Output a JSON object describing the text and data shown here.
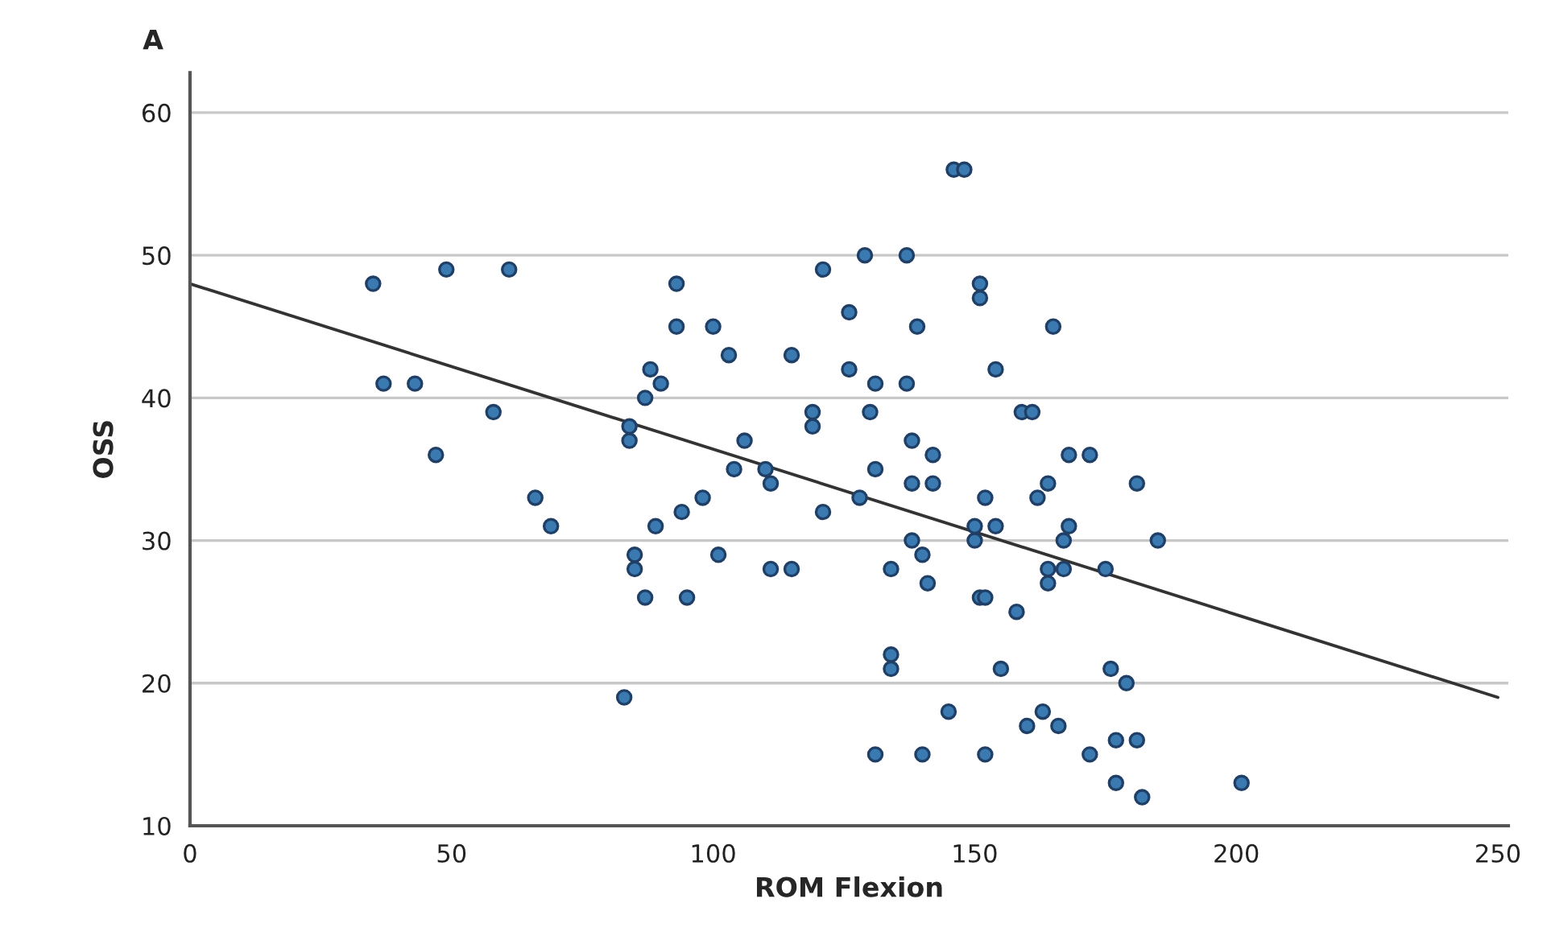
{
  "chart_data": {
    "type": "scatter",
    "title": "A",
    "xlabel": "ROM Flexion",
    "ylabel": "OSS",
    "xlim": [
      0,
      252
    ],
    "ylim": [
      10,
      62.8
    ],
    "xticks": [
      0,
      50,
      100,
      150,
      200,
      250
    ],
    "yticks": [
      10,
      20,
      30,
      40,
      50,
      60
    ],
    "grid": "y",
    "marker": "circle",
    "series": [
      {
        "color": "#3a7ab0",
        "x": [
          35,
          37,
          43,
          47,
          49,
          58,
          61,
          66,
          69,
          83,
          84,
          84,
          85,
          85,
          87,
          88,
          87,
          89,
          90,
          93,
          93,
          94,
          95,
          98,
          100,
          101,
          103,
          104,
          106,
          110,
          111,
          111,
          115,
          115,
          119,
          119,
          121,
          121,
          126,
          126,
          128,
          129,
          131,
          130,
          131,
          131,
          134,
          134,
          134,
          137,
          137,
          138,
          138,
          138,
          139,
          140,
          140,
          141,
          142,
          142,
          145,
          146,
          148,
          150,
          150,
          151,
          151,
          151,
          152,
          152,
          152,
          154,
          154,
          155,
          158,
          159,
          161,
          160,
          162,
          163,
          164,
          164,
          164,
          165,
          166,
          167,
          167,
          168,
          168,
          172,
          172,
          175,
          176,
          177,
          177,
          179,
          181,
          181,
          182,
          185,
          201
        ],
        "values": [
          48,
          41,
          41,
          36,
          49,
          39,
          49,
          33,
          31,
          19,
          38,
          37,
          29,
          28,
          26,
          42,
          40,
          31,
          41,
          48,
          45,
          32,
          26,
          33,
          45,
          29,
          43,
          35,
          37,
          35,
          34,
          28,
          28,
          43,
          39,
          38,
          32,
          49,
          46,
          42,
          33,
          50,
          41,
          39,
          35,
          15,
          28,
          22,
          21,
          50,
          41,
          37,
          34,
          30,
          45,
          29,
          15,
          27,
          36,
          34,
          18,
          56,
          56,
          30,
          31,
          48,
          47,
          26,
          26,
          33,
          15,
          42,
          31,
          21,
          25,
          39,
          39,
          17,
          33,
          18,
          34,
          28,
          27,
          45,
          17,
          28,
          30,
          31,
          36,
          36,
          15,
          28,
          21,
          16,
          13,
          20,
          34,
          16,
          12,
          30,
          13
        ]
      },
      {
        "type": "line",
        "color": "#333333",
        "x": [
          0,
          250
        ],
        "values": [
          48,
          19
        ],
        "marker": "none",
        "line_style": "solid"
      }
    ]
  }
}
